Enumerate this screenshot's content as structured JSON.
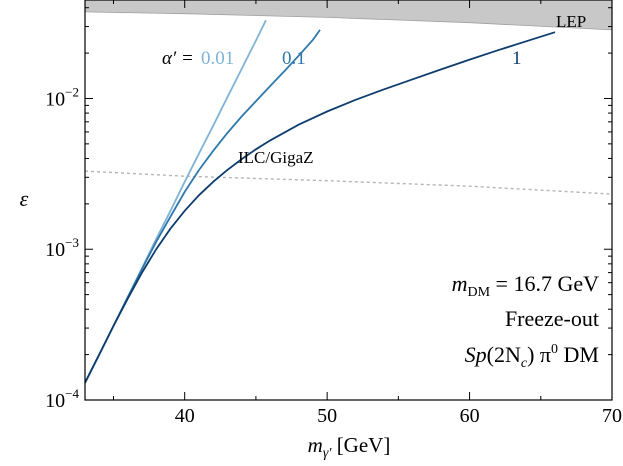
{
  "chart_data": {
    "type": "line",
    "x_axis": {
      "label_main": "m",
      "label_sub": "γ′",
      "label_unit": "[GeV]",
      "range": [
        33,
        70
      ],
      "ticks": [
        40,
        50,
        60,
        70
      ],
      "tick_labels": [
        "40",
        "50",
        "60",
        "70"
      ]
    },
    "y_axis": {
      "label": "ε",
      "scale": "log",
      "range": [
        0.0001,
        0.045
      ],
      "ticks": [
        0.0001,
        0.001,
        0.01
      ],
      "tick_labels": [
        {
          "base": "10",
          "exp": "−4"
        },
        {
          "base": "10",
          "exp": "−3"
        },
        {
          "base": "10",
          "exp": "−2"
        }
      ]
    },
    "series": [
      {
        "name": "0.01",
        "color": "#7fb3d5",
        "x": [
          33,
          34,
          35,
          36,
          37,
          38,
          39,
          40,
          41,
          42,
          43,
          44,
          45,
          45.7
        ],
        "y": [
          0.00013,
          0.0002,
          0.00031,
          0.00048,
          0.00075,
          0.00117,
          0.0018,
          0.0028,
          0.0043,
          0.0066,
          0.0102,
          0.0157,
          0.0242,
          0.033
        ]
      },
      {
        "name": "0.1",
        "color": "#2e78ad",
        "x": [
          33,
          34,
          35,
          36,
          37,
          38,
          39,
          40,
          41,
          42,
          43,
          44,
          45,
          46,
          47,
          48,
          49,
          49.5
        ],
        "y": [
          0.00013,
          0.0002,
          0.00031,
          0.00048,
          0.00074,
          0.00112,
          0.00165,
          0.0024,
          0.00335,
          0.0045,
          0.0059,
          0.0076,
          0.0096,
          0.0121,
          0.0152,
          0.0192,
          0.0245,
          0.0285
        ]
      },
      {
        "name": "1",
        "color": "#0d3d6e",
        "x": [
          33,
          34,
          35,
          36,
          37,
          38,
          39,
          40,
          41,
          42,
          43,
          44,
          45,
          46,
          48,
          50,
          52,
          54,
          56,
          58,
          60,
          62,
          64,
          66
        ],
        "y": [
          0.00013,
          0.0002,
          0.00031,
          0.00047,
          0.0007,
          0.001,
          0.00137,
          0.0018,
          0.00228,
          0.0028,
          0.00336,
          0.00396,
          0.0046,
          0.00527,
          0.0067,
          0.0082,
          0.0098,
          0.0115,
          0.0134,
          0.0156,
          0.0181,
          0.0209,
          0.024,
          0.0275
        ]
      }
    ],
    "ilc_projection": {
      "name": "ILC/GigaZ",
      "color": "#b5b5b5",
      "x": [
        33,
        40,
        50,
        60,
        70
      ],
      "y": [
        0.0033,
        0.00305,
        0.00285,
        0.00262,
        0.00232
      ]
    },
    "lep_region": {
      "name": "LEP",
      "color": "#c8c8c8",
      "x": [
        33,
        40,
        50,
        60,
        70
      ],
      "y_lower": [
        0.0375,
        0.0365,
        0.0345,
        0.0318,
        0.0285
      ]
    },
    "alpha_label": "α′ =",
    "annotation_lines": [
      {
        "main": "m",
        "sub": "DM",
        "rest": " = 16.7 GeV"
      },
      {
        "main": "Freeze-out"
      },
      {
        "main": "Sp",
        "rest": "(2N",
        "sub": "c",
        "tail": ")  π",
        "sup": "0",
        "end": " DM"
      }
    ],
    "grid": false,
    "legend": "inline labels"
  }
}
